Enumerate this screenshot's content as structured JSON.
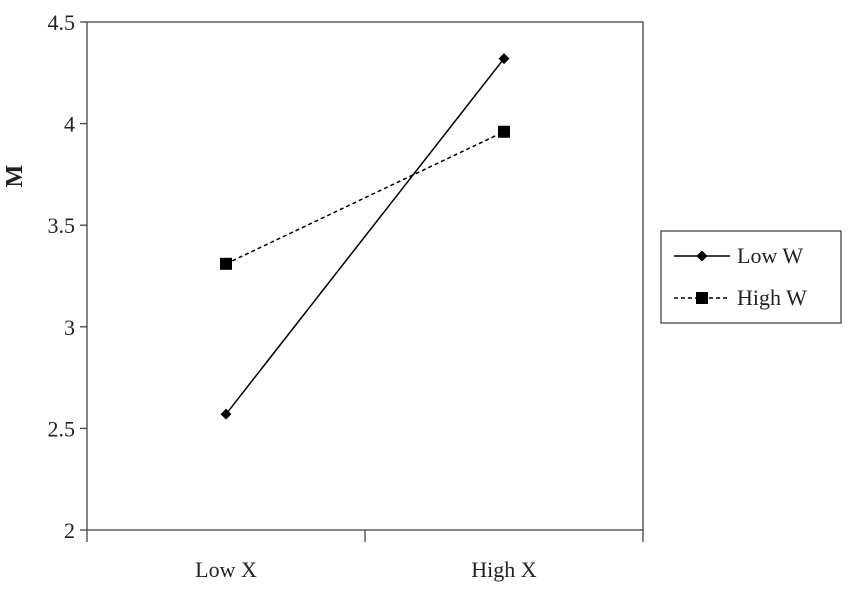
{
  "chart_data": {
    "type": "line",
    "categories": [
      "Low X",
      "High X"
    ],
    "ylabel": "M",
    "xlabel": "",
    "ylim": [
      2,
      4.5
    ],
    "yticks": [
      "2",
      "2.5",
      "3",
      "3.5",
      "4",
      "4.5"
    ],
    "grid": false,
    "legend_position": "right",
    "series": [
      {
        "name": "Low W",
        "values": [
          2.57,
          4.32
        ],
        "line_style": "solid",
        "marker": "diamond",
        "color": "#000000"
      },
      {
        "name": "High W",
        "values": [
          3.31,
          3.96
        ],
        "line_style": "dashed",
        "marker": "square",
        "color": "#000000"
      }
    ]
  }
}
